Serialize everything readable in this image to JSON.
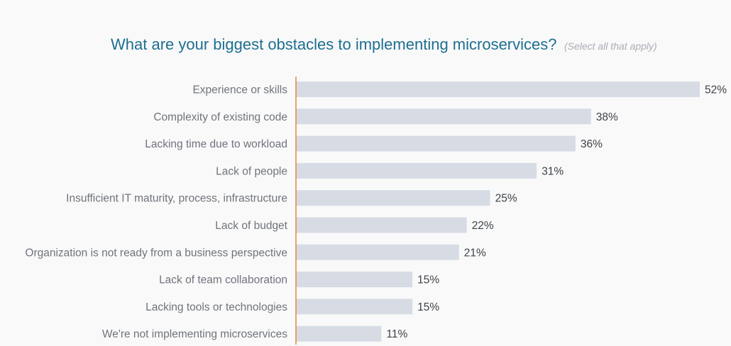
{
  "chart_data": {
    "type": "bar",
    "orientation": "horizontal",
    "title": "What are your biggest obstacles to implementing microservices?",
    "subtitle": "(Select all that apply)",
    "categories": [
      "Experience or skills",
      "Complexity of existing code",
      "Lacking time due to workload",
      "Lack of people",
      "Insufficient IT maturity, process, infrastructure",
      "Lack of budget",
      "Organization is not ready from a business perspective",
      "Lack of team collaboration",
      "Lacking tools or technologies",
      "We're not implementing microservices"
    ],
    "values": [
      52,
      38,
      36,
      31,
      25,
      22,
      21,
      15,
      15,
      11
    ],
    "value_suffix": "%",
    "xlim": [
      0,
      52
    ],
    "grid": false,
    "legend": "none",
    "colors": {
      "bar": "#d7dce4",
      "axis": "#e08a3c",
      "title": "#1e6f8f"
    }
  }
}
